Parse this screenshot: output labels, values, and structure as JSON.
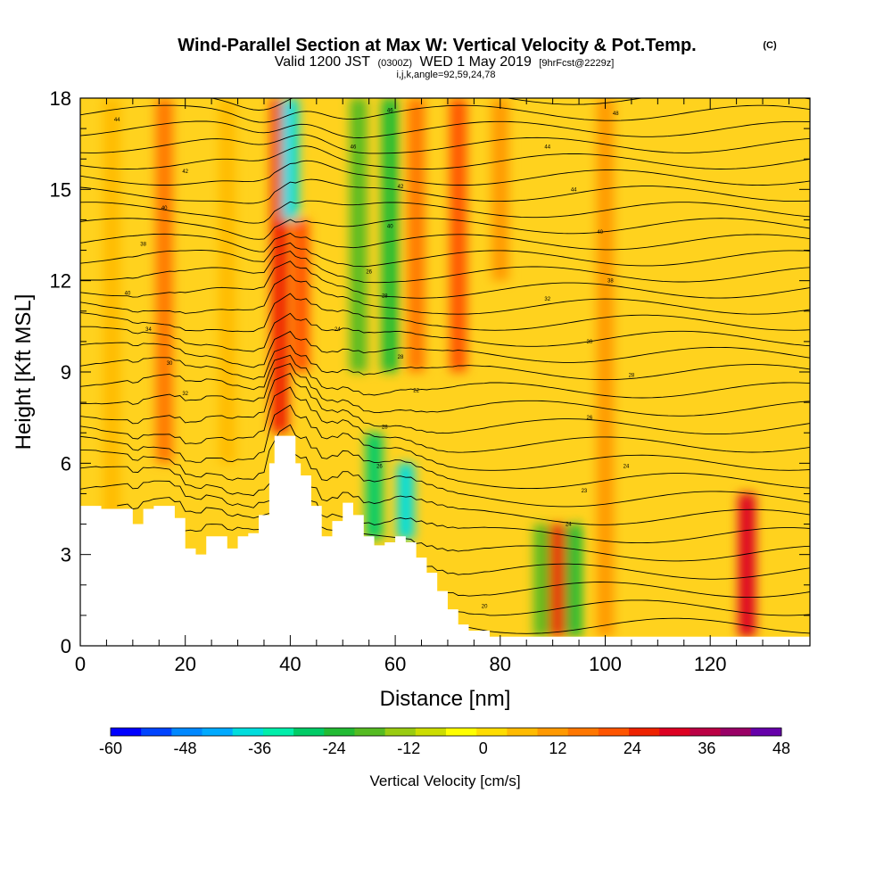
{
  "chart_data": {
    "type": "heatmap",
    "title": "Wind-Parallel Section at Max W: Vertical Velocity & Pot.Temp.",
    "title_mark": "(C)",
    "subtitle": {
      "prefix": "Valid 1200 JST",
      "utc": "(0300Z)",
      "date": "WED 1 May 2019",
      "forecast": "[9hrFcst@2229z]"
    },
    "indices": "i,j,k,angle=92,59,24,78",
    "xlabel": "Distance [nm]",
    "ylabel": "Height [Kft MSL]",
    "xlim": [
      0,
      139
    ],
    "ylim": [
      0,
      18
    ],
    "xticks": [
      0,
      20,
      40,
      60,
      80,
      100,
      120
    ],
    "yticks": [
      0,
      3,
      6,
      9,
      12,
      15,
      18
    ],
    "grid": false,
    "colorbar": {
      "label": "Vertical Velocity [cm/s]",
      "min": -60,
      "max": 48,
      "tick_values": [
        -60,
        -48,
        -36,
        -24,
        -12,
        0,
        12,
        24,
        36,
        48
      ],
      "colors": [
        "#0000ff",
        "#0044ff",
        "#0088ff",
        "#00aaff",
        "#00dddd",
        "#00eeaa",
        "#00cc66",
        "#22bb33",
        "#55bb22",
        "#99cc11",
        "#ccdd00",
        "#ffff00",
        "#ffdd00",
        "#ffbb00",
        "#ff9900",
        "#ff7700",
        "#ff5500",
        "#ee2200",
        "#dd0022",
        "#bb0044",
        "#990066",
        "#6600aa"
      ]
    },
    "terrain_height_kft": [
      [
        0,
        4.6
      ],
      [
        2,
        4.6
      ],
      [
        4,
        4.5
      ],
      [
        6,
        4.5
      ],
      [
        8,
        4.5
      ],
      [
        10,
        4.0
      ],
      [
        12,
        4.5
      ],
      [
        14,
        4.6
      ],
      [
        16,
        4.6
      ],
      [
        18,
        4.2
      ],
      [
        20,
        3.2
      ],
      [
        22,
        3.0
      ],
      [
        24,
        3.6
      ],
      [
        26,
        3.6
      ],
      [
        28,
        3.2
      ],
      [
        30,
        3.6
      ],
      [
        32,
        3.7
      ],
      [
        34,
        4.3
      ],
      [
        36,
        6.0
      ],
      [
        37,
        6.9
      ],
      [
        40,
        6.9
      ],
      [
        41,
        6.0
      ],
      [
        42,
        5.6
      ],
      [
        44,
        4.6
      ],
      [
        46,
        3.6
      ],
      [
        48,
        4.1
      ],
      [
        50,
        4.7
      ],
      [
        52,
        4.3
      ],
      [
        54,
        3.6
      ],
      [
        56,
        3.3
      ],
      [
        58,
        3.4
      ],
      [
        60,
        3.6
      ],
      [
        62,
        3.4
      ],
      [
        64,
        2.9
      ],
      [
        66,
        2.4
      ],
      [
        68,
        1.8
      ],
      [
        70,
        1.2
      ],
      [
        72,
        0.7
      ],
      [
        74,
        0.5
      ],
      [
        76,
        0.5
      ],
      [
        78,
        0.3
      ],
      [
        139,
        0.3
      ]
    ],
    "vertical_velocity_cells_cm_s": [
      {
        "x_center": 6,
        "z_range": [
          0,
          18
        ],
        "w": 4
      },
      {
        "x_center": 16,
        "z_range": [
          6,
          18
        ],
        "w": 14
      },
      {
        "x_center": 28,
        "z_range": [
          6,
          18
        ],
        "w": 8
      },
      {
        "x_center": 38,
        "z_range": [
          7,
          18
        ],
        "w": 26
      },
      {
        "x_center": 40,
        "z_range": [
          14,
          18
        ],
        "w": -36
      },
      {
        "x_center": 42,
        "z_range": [
          9,
          14
        ],
        "w": 20
      },
      {
        "x_center": 53,
        "z_range": [
          9,
          18
        ],
        "w": -20
      },
      {
        "x_center": 56,
        "z_range": [
          3.5,
          7
        ],
        "w": -30
      },
      {
        "x_center": 59,
        "z_range": [
          9,
          18
        ],
        "w": -22
      },
      {
        "x_center": 62,
        "z_range": [
          3.5,
          6
        ],
        "w": -40
      },
      {
        "x_center": 64,
        "z_range": [
          9,
          18
        ],
        "w": 18
      },
      {
        "x_center": 72,
        "z_range": [
          9,
          18
        ],
        "w": 22
      },
      {
        "x_center": 80,
        "z_range": [
          12,
          18
        ],
        "w": 10
      },
      {
        "x_center": 88,
        "z_range": [
          0.3,
          4
        ],
        "w": -18
      },
      {
        "x_center": 91,
        "z_range": [
          0.3,
          4
        ],
        "w": 26
      },
      {
        "x_center": 94,
        "z_range": [
          0.3,
          4
        ],
        "w": -24
      },
      {
        "x_center": 100,
        "z_range": [
          0.3,
          18
        ],
        "w": 10
      },
      {
        "x_center": 127,
        "z_range": [
          0.3,
          5
        ],
        "w": 30
      }
    ],
    "potential_temperature_contours": {
      "interval_K": 1,
      "labels": [
        {
          "x": 7,
          "z": 17.3,
          "text": "44"
        },
        {
          "x": 20,
          "z": 15.6,
          "text": "42"
        },
        {
          "x": 16,
          "z": 14.4,
          "text": "40"
        },
        {
          "x": 12,
          "z": 13.2,
          "text": "38"
        },
        {
          "x": 9,
          "z": 11.6,
          "text": "40"
        },
        {
          "x": 13,
          "z": 10.4,
          "text": "34"
        },
        {
          "x": 17,
          "z": 9.3,
          "text": "30"
        },
        {
          "x": 20,
          "z": 8.3,
          "text": "32"
        },
        {
          "x": 59,
          "z": 17.6,
          "text": "46"
        },
        {
          "x": 52,
          "z": 16.4,
          "text": "46"
        },
        {
          "x": 61,
          "z": 15.1,
          "text": "42"
        },
        {
          "x": 59,
          "z": 13.8,
          "text": "40"
        },
        {
          "x": 55,
          "z": 12.3,
          "text": "26"
        },
        {
          "x": 58,
          "z": 11.5,
          "text": "28"
        },
        {
          "x": 49,
          "z": 10.4,
          "text": "24"
        },
        {
          "x": 61,
          "z": 9.5,
          "text": "28"
        },
        {
          "x": 64,
          "z": 8.4,
          "text": "22"
        },
        {
          "x": 58,
          "z": 7.2,
          "text": "28"
        },
        {
          "x": 57,
          "z": 5.9,
          "text": "26"
        },
        {
          "x": 102,
          "z": 17.5,
          "text": "48"
        },
        {
          "x": 89,
          "z": 16.4,
          "text": "44"
        },
        {
          "x": 94,
          "z": 15.0,
          "text": "44"
        },
        {
          "x": 99,
          "z": 13.6,
          "text": "40"
        },
        {
          "x": 101,
          "z": 12.0,
          "text": "38"
        },
        {
          "x": 89,
          "z": 11.4,
          "text": "32"
        },
        {
          "x": 97,
          "z": 10.0,
          "text": "30"
        },
        {
          "x": 105,
          "z": 8.9,
          "text": "28"
        },
        {
          "x": 97,
          "z": 7.5,
          "text": "26"
        },
        {
          "x": 104,
          "z": 5.9,
          "text": "24"
        },
        {
          "x": 96,
          "z": 5.1,
          "text": "23"
        },
        {
          "x": 93,
          "z": 4.0,
          "text": "24"
        },
        {
          "x": 77,
          "z": 1.3,
          "text": "20"
        }
      ]
    }
  }
}
